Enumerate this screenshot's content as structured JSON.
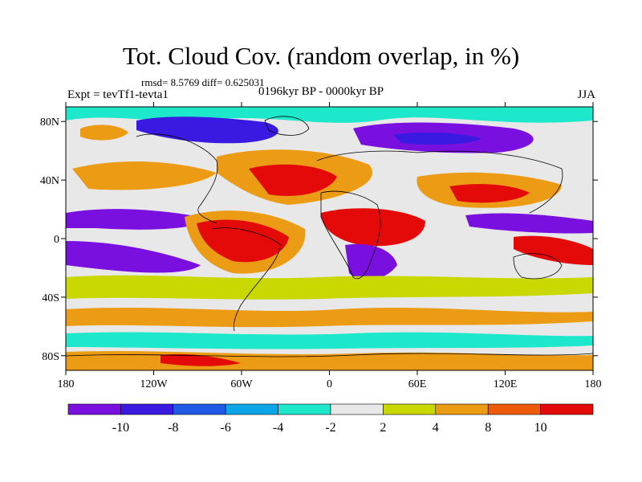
{
  "title": "Tot. Cloud Cov. (random overlap, in %)",
  "stats": "rmsd= 8.5769 diff= 0.625031",
  "experiment": "Expt = tevTf1-tevta1",
  "period": "0196kyr BP - 0000kyr BP",
  "season": "JJA",
  "map": {
    "lat_ticks": [
      "80N",
      "40N",
      "0",
      "40S",
      "80S"
    ],
    "lat_values": [
      80,
      40,
      0,
      -40,
      -80
    ],
    "lon_ticks": [
      "180",
      "120W",
      "60W",
      "0",
      "60E",
      "120E",
      "180"
    ],
    "lon_values": [
      -180,
      -120,
      -60,
      0,
      60,
      120,
      180
    ],
    "lat_range": [
      -90,
      90
    ],
    "lon_range": [
      -180,
      180
    ]
  },
  "colorbar": {
    "labels": [
      "-10",
      "-8",
      "-6",
      "-4",
      "-2",
      "2",
      "4",
      "8",
      "10"
    ],
    "colors": [
      "#7a10e0",
      "#3a1ae0",
      "#1f5ae6",
      "#0aa6e8",
      "#1ee8cc",
      "#e8e8e8",
      "#c8d800",
      "#ec9b14",
      "#ec5a0a",
      "#e40a0a"
    ]
  }
}
